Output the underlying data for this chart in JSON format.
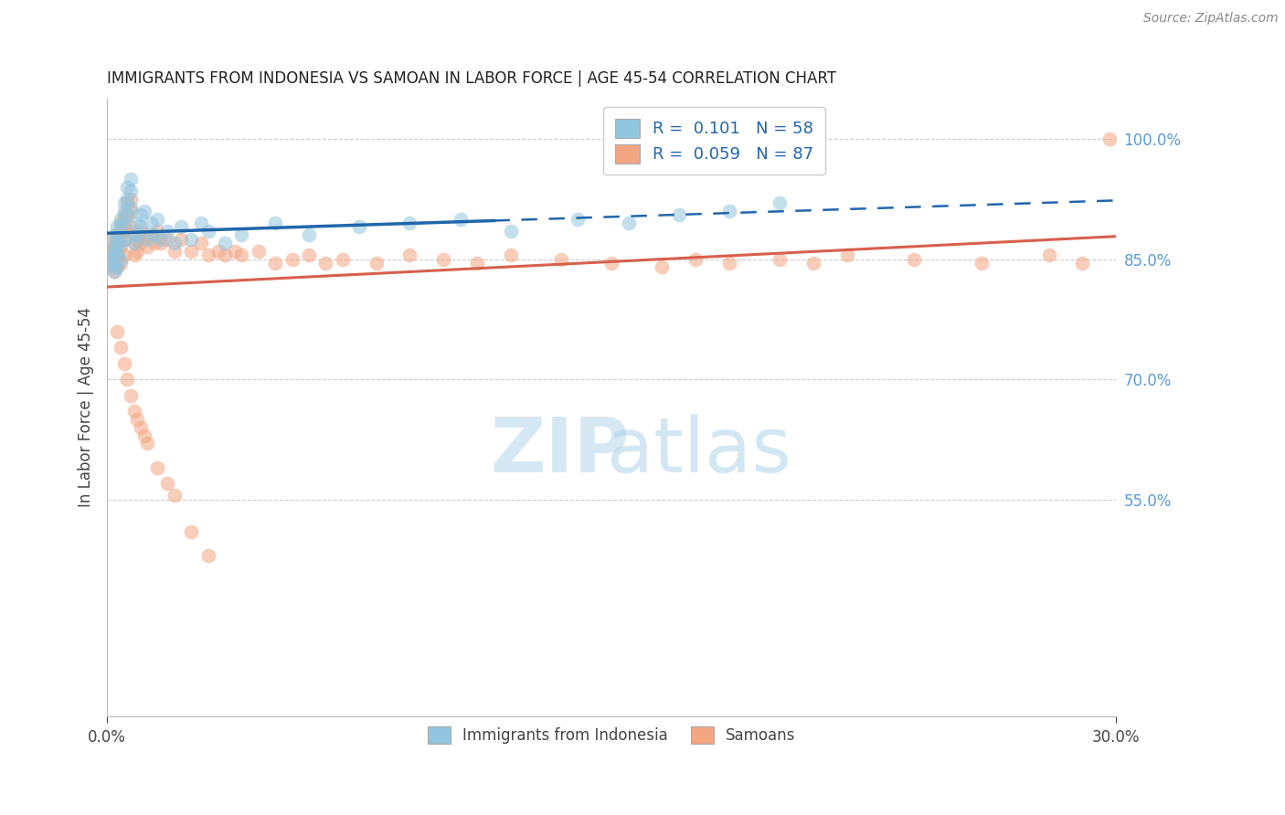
{
  "title": "IMMIGRANTS FROM INDONESIA VS SAMOAN IN LABOR FORCE | AGE 45-54 CORRELATION CHART",
  "source_text": "Source: ZipAtlas.com",
  "ylabel": "In Labor Force | Age 45-54",
  "xlim": [
    0.0,
    0.3
  ],
  "ylim": [
    0.28,
    1.05
  ],
  "ytick_right_labels": [
    "100.0%",
    "85.0%",
    "70.0%",
    "55.0%"
  ],
  "ytick_right_values": [
    1.0,
    0.85,
    0.7,
    0.55
  ],
  "legend_r1": "R =  0.101",
  "legend_n1": "N = 58",
  "legend_r2": "R =  0.059",
  "legend_n2": "N = 87",
  "blue_color": "#92c5de",
  "pink_color": "#f4a582",
  "line_blue": "#2166ac",
  "line_pink": "#d6604d",
  "legend_label1": "Immigrants from Indonesia",
  "legend_label2": "Samoans",
  "blue_dot_alpha": 0.55,
  "pink_dot_alpha": 0.55,
  "dot_size": 130,
  "blue_x": [
    0.001,
    0.001,
    0.001,
    0.002,
    0.002,
    0.002,
    0.002,
    0.002,
    0.003,
    0.003,
    0.003,
    0.003,
    0.003,
    0.004,
    0.004,
    0.004,
    0.004,
    0.005,
    0.005,
    0.005,
    0.005,
    0.006,
    0.006,
    0.006,
    0.007,
    0.007,
    0.007,
    0.008,
    0.008,
    0.009,
    0.009,
    0.01,
    0.01,
    0.011,
    0.012,
    0.013,
    0.014,
    0.015,
    0.016,
    0.018,
    0.02,
    0.022,
    0.025,
    0.028,
    0.03,
    0.035,
    0.04,
    0.05,
    0.06,
    0.075,
    0.09,
    0.105,
    0.12,
    0.14,
    0.155,
    0.17,
    0.185,
    0.2
  ],
  "blue_y": [
    0.855,
    0.85,
    0.845,
    0.88,
    0.87,
    0.86,
    0.84,
    0.835,
    0.89,
    0.875,
    0.865,
    0.855,
    0.84,
    0.9,
    0.89,
    0.87,
    0.85,
    0.92,
    0.91,
    0.895,
    0.875,
    0.94,
    0.925,
    0.905,
    0.95,
    0.935,
    0.915,
    0.88,
    0.87,
    0.895,
    0.88,
    0.905,
    0.89,
    0.91,
    0.875,
    0.895,
    0.88,
    0.9,
    0.875,
    0.885,
    0.87,
    0.89,
    0.875,
    0.895,
    0.885,
    0.87,
    0.88,
    0.895,
    0.88,
    0.89,
    0.895,
    0.9,
    0.885,
    0.9,
    0.895,
    0.905,
    0.91,
    0.92
  ],
  "pink_x": [
    0.001,
    0.001,
    0.001,
    0.002,
    0.002,
    0.002,
    0.002,
    0.002,
    0.003,
    0.003,
    0.003,
    0.003,
    0.004,
    0.004,
    0.004,
    0.004,
    0.005,
    0.005,
    0.005,
    0.005,
    0.006,
    0.006,
    0.006,
    0.007,
    0.007,
    0.007,
    0.008,
    0.008,
    0.009,
    0.009,
    0.01,
    0.01,
    0.011,
    0.012,
    0.013,
    0.014,
    0.015,
    0.016,
    0.018,
    0.02,
    0.022,
    0.025,
    0.028,
    0.03,
    0.033,
    0.035,
    0.038,
    0.04,
    0.045,
    0.05,
    0.055,
    0.06,
    0.065,
    0.07,
    0.08,
    0.09,
    0.1,
    0.11,
    0.12,
    0.135,
    0.15,
    0.165,
    0.175,
    0.185,
    0.2,
    0.21,
    0.22,
    0.24,
    0.26,
    0.28,
    0.29,
    0.298,
    0.003,
    0.004,
    0.005,
    0.006,
    0.007,
    0.008,
    0.009,
    0.01,
    0.011,
    0.012,
    0.015,
    0.018,
    0.02,
    0.025,
    0.03
  ],
  "pink_y": [
    0.86,
    0.855,
    0.845,
    0.875,
    0.865,
    0.855,
    0.84,
    0.835,
    0.88,
    0.87,
    0.855,
    0.84,
    0.895,
    0.88,
    0.865,
    0.845,
    0.905,
    0.89,
    0.875,
    0.855,
    0.92,
    0.905,
    0.885,
    0.925,
    0.91,
    0.89,
    0.87,
    0.855,
    0.875,
    0.86,
    0.885,
    0.87,
    0.88,
    0.865,
    0.88,
    0.87,
    0.885,
    0.87,
    0.875,
    0.86,
    0.875,
    0.86,
    0.87,
    0.855,
    0.86,
    0.855,
    0.86,
    0.855,
    0.86,
    0.845,
    0.85,
    0.855,
    0.845,
    0.85,
    0.845,
    0.855,
    0.85,
    0.845,
    0.855,
    0.85,
    0.845,
    0.84,
    0.85,
    0.845,
    0.85,
    0.845,
    0.855,
    0.85,
    0.845,
    0.855,
    0.845,
    1.0,
    0.76,
    0.74,
    0.72,
    0.7,
    0.68,
    0.66,
    0.65,
    0.64,
    0.63,
    0.62,
    0.59,
    0.57,
    0.555,
    0.51,
    0.48
  ]
}
